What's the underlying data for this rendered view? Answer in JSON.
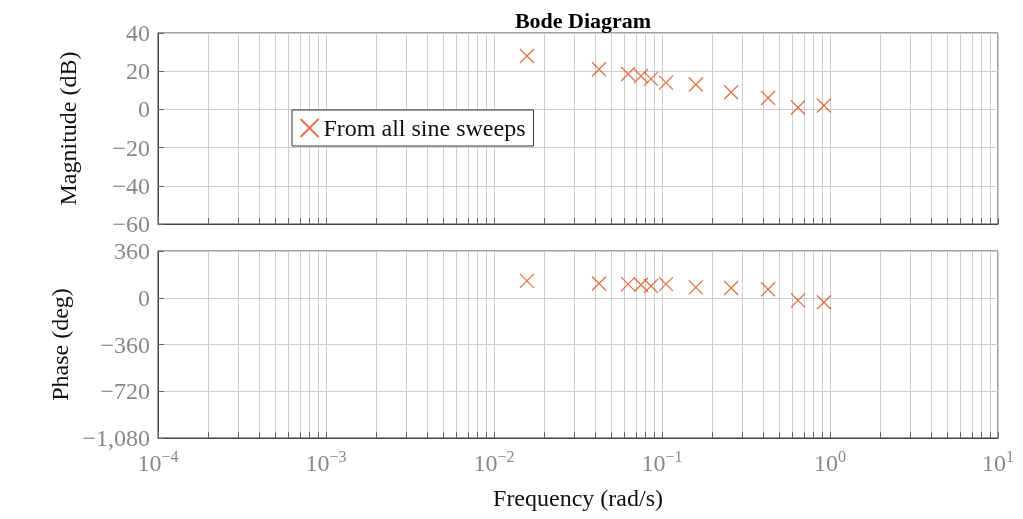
{
  "chart_data": [
    {
      "type": "scatter",
      "title": "Bode Diagram",
      "ylabel": "Magnitude (dB)",
      "x": [
        0.0157,
        0.0422,
        0.0628,
        0.075,
        0.086,
        0.1056,
        0.159,
        0.258,
        0.428,
        0.645,
        0.92
      ],
      "series": [
        {
          "name": "From all sine sweeps",
          "color": "#d95319",
          "values": [
            28,
            21,
            18.5,
            17.5,
            16,
            14,
            13,
            9,
            6,
            1,
            2
          ]
        }
      ],
      "xlim": [
        0.0001,
        10
      ],
      "xticks": [
        {
          "value": 0.0001,
          "label": null
        },
        {
          "value": 0.0002,
          "label": null
        },
        {
          "value": 0.0003,
          "label": null
        },
        {
          "value": 0.0004,
          "label": null
        },
        {
          "value": 0.0005,
          "label": null
        },
        {
          "value": 0.0006,
          "label": null
        },
        {
          "value": 0.0007,
          "label": null
        },
        {
          "value": 0.0008,
          "label": null
        },
        {
          "value": 0.0009,
          "label": null
        },
        {
          "value": 0.001,
          "label": null
        },
        {
          "value": 0.002,
          "label": null
        },
        {
          "value": 0.003,
          "label": null
        },
        {
          "value": 0.004,
          "label": null
        },
        {
          "value": 0.005,
          "label": null
        },
        {
          "value": 0.006,
          "label": null
        },
        {
          "value": 0.007,
          "label": null
        },
        {
          "value": 0.008,
          "label": null
        },
        {
          "value": 0.009,
          "label": null
        },
        {
          "value": 0.01,
          "label": null
        },
        {
          "value": 0.02,
          "label": null
        },
        {
          "value": 0.03,
          "label": null
        },
        {
          "value": 0.04,
          "label": null
        },
        {
          "value": 0.05,
          "label": null
        },
        {
          "value": 0.06,
          "label": null
        },
        {
          "value": 0.07,
          "label": null
        },
        {
          "value": 0.08,
          "label": null
        },
        {
          "value": 0.09,
          "label": null
        },
        {
          "value": 0.1,
          "label": null
        },
        {
          "value": 0.2,
          "label": null
        },
        {
          "value": 0.3,
          "label": null
        },
        {
          "value": 0.4,
          "label": null
        },
        {
          "value": 0.5,
          "label": null
        },
        {
          "value": 0.6,
          "label": null
        },
        {
          "value": 0.7,
          "label": null
        },
        {
          "value": 0.8,
          "label": null
        },
        {
          "value": 0.9,
          "label": null
        },
        {
          "value": 1,
          "label": null
        },
        {
          "value": 2,
          "label": null
        },
        {
          "value": 3,
          "label": null
        },
        {
          "value": 4,
          "label": null
        },
        {
          "value": 5,
          "label": null
        },
        {
          "value": 6,
          "label": null
        },
        {
          "value": 7,
          "label": null
        },
        {
          "value": 8,
          "label": null
        },
        {
          "value": 9,
          "label": null
        },
        {
          "value": 10,
          "label": null
        }
      ],
      "ylim": [
        -60,
        40
      ],
      "yticks": [
        {
          "value": -60,
          "label": "−60"
        },
        {
          "value": -40,
          "label": "−40"
        },
        {
          "value": -20,
          "label": "−20"
        },
        0,
        20,
        40
      ],
      "log": "x",
      "grid": true,
      "legend": "left",
      "marker": "cross",
      "tick_labels": "y"
    },
    {
      "type": "scatter",
      "xlabel": "Frequency (rad/s)",
      "ylabel": "Phase (deg)",
      "x": [
        0.0157,
        0.0422,
        0.0628,
        0.075,
        0.086,
        0.1056,
        0.159,
        0.258,
        0.428,
        0.645,
        0.92
      ],
      "series": [
        {
          "color": "#d95319",
          "values": [
            130,
            110,
            105,
            100,
            90,
            105,
            80,
            75,
            65,
            -20,
            -35
          ]
        }
      ],
      "xlim": [
        0.0001,
        10
      ],
      "xticks": [
        {
          "value": 0.0001,
          "label": "10$^{−4}$"
        },
        {
          "value": 0.0002,
          "label": null
        },
        {
          "value": 0.0003,
          "label": null
        },
        {
          "value": 0.0004,
          "label": null
        },
        {
          "value": 0.0005,
          "label": null
        },
        {
          "value": 0.0006,
          "label": null
        },
        {
          "value": 0.0007,
          "label": null
        },
        {
          "value": 0.0008,
          "label": null
        },
        {
          "value": 0.0009,
          "label": null
        },
        {
          "value": 0.001,
          "label": "10$^{−3}$"
        },
        {
          "value": 0.002,
          "label": null
        },
        {
          "value": 0.003,
          "label": null
        },
        {
          "value": 0.004,
          "label": null
        },
        {
          "value": 0.005,
          "label": null
        },
        {
          "value": 0.006,
          "label": null
        },
        {
          "value": 0.007,
          "label": null
        },
        {
          "value": 0.008,
          "label": null
        },
        {
          "value": 0.009,
          "label": null
        },
        {
          "value": 0.01,
          "label": "10$^{−2}$"
        },
        {
          "value": 0.02,
          "label": null
        },
        {
          "value": 0.03,
          "label": null
        },
        {
          "value": 0.04,
          "label": null
        },
        {
          "value": 0.05,
          "label": null
        },
        {
          "value": 0.06,
          "label": null
        },
        {
          "value": 0.07,
          "label": null
        },
        {
          "value": 0.08,
          "label": null
        },
        {
          "value": 0.09,
          "label": null
        },
        {
          "value": 0.1,
          "label": "10$^{−1}$"
        },
        {
          "value": 0.2,
          "label": null
        },
        {
          "value": 0.3,
          "label": null
        },
        {
          "value": 0.4,
          "label": null
        },
        {
          "value": 0.5,
          "label": null
        },
        {
          "value": 0.6,
          "label": null
        },
        {
          "value": 0.7,
          "label": null
        },
        {
          "value": 0.8,
          "label": null
        },
        {
          "value": 0.9,
          "label": null
        },
        {
          "value": 1,
          "label": "10$^{0}$"
        },
        {
          "value": 2,
          "label": null
        },
        {
          "value": 3,
          "label": null
        },
        {
          "value": 4,
          "label": null
        },
        {
          "value": 5,
          "label": null
        },
        {
          "value": 6,
          "label": null
        },
        {
          "value": 7,
          "label": null
        },
        {
          "value": 8,
          "label": null
        },
        {
          "value": 9,
          "label": null
        },
        {
          "value": 10,
          "label": "10$^{1}$"
        }
      ],
      "ylim": [
        -1080,
        360
      ],
      "yticks": [
        {
          "value": -1080,
          "label": "−1,080"
        },
        {
          "value": -720,
          "label": "−720"
        },
        {
          "value": -360,
          "label": "−360"
        },
        0,
        360
      ],
      "log": "x",
      "grid": true,
      "marker": "cross"
    }
  ]
}
